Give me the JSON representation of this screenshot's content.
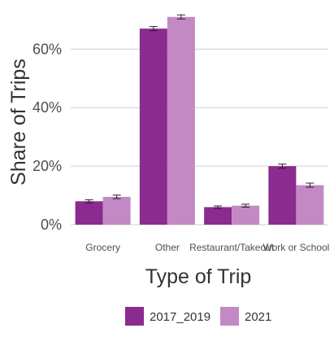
{
  "chart_data": {
    "type": "bar",
    "xlabel": "Type of Trip",
    "ylabel": "Share of Trips",
    "categories": [
      "Grocery",
      "Other",
      "Restaurant/Takeout",
      "Work or School"
    ],
    "ylim": [
      0,
      0.74
    ],
    "yticks": [
      0,
      0.2,
      0.4,
      0.6
    ],
    "ytick_labels": [
      "0%",
      "20%",
      "40%",
      "60%"
    ],
    "grid": true,
    "legend_position": "bottom",
    "series": [
      {
        "name": "2017_2019",
        "color": "#8b2a8f",
        "values": [
          0.08,
          0.67,
          0.06,
          0.2
        ],
        "error": [
          0.005,
          0.007,
          0.004,
          0.007
        ]
      },
      {
        "name": "2021",
        "color": "#c389c4",
        "values": [
          0.095,
          0.71,
          0.065,
          0.135
        ],
        "error": [
          0.006,
          0.007,
          0.005,
          0.007
        ]
      }
    ]
  }
}
